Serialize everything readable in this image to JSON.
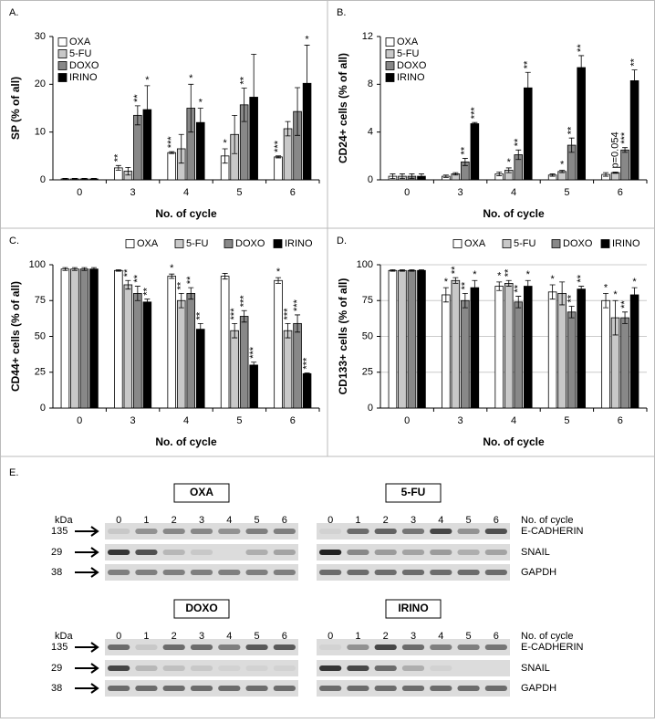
{
  "chart_data": [
    {
      "type": "bar",
      "label": "A.",
      "ylabel": "SP (% of all)",
      "xlabel": "No. of cycle",
      "categories": [
        "0",
        "3",
        "4",
        "5",
        "6"
      ],
      "ylim": [
        0,
        30
      ],
      "yticks": [
        0,
        10,
        20,
        30
      ],
      "grid": false,
      "legend": "upper left",
      "series": [
        {
          "name": "OXA",
          "color": "#ffffff",
          "values": [
            0.2,
            2.5,
            5.7,
            5,
            4.8
          ],
          "errors": [
            0.1,
            0.5,
            0.2,
            1.5,
            0.2
          ],
          "sig": [
            null,
            "**",
            "***",
            "*",
            "***"
          ]
        },
        {
          "name": "5-FU",
          "color": "#c8c8c8",
          "values": [
            0.2,
            1.8,
            6.5,
            9.5,
            10.7
          ],
          "errors": [
            0.1,
            0.8,
            3,
            4,
            1.5
          ],
          "sig": [
            null,
            null,
            null,
            null,
            null
          ]
        },
        {
          "name": "DOXO",
          "color": "#888888",
          "values": [
            0.2,
            13.5,
            15,
            15.7,
            14.3
          ],
          "errors": [
            0.1,
            2,
            5,
            3.5,
            5
          ],
          "sig": [
            null,
            "**",
            "*",
            "**",
            null
          ]
        },
        {
          "name": "IRINO",
          "color": "#000000",
          "values": [
            0.2,
            14.7,
            12,
            17.3,
            20.2
          ],
          "errors": [
            0.1,
            5,
            3,
            9,
            8
          ],
          "sig": [
            null,
            "*",
            "*",
            null,
            "*"
          ]
        }
      ]
    },
    {
      "type": "bar",
      "label": "B.",
      "ylabel": "CD24+ cells (% of all)",
      "xlabel": "No. of cycle",
      "categories": [
        "0",
        "3",
        "4",
        "5",
        "6"
      ],
      "ylim": [
        0,
        12
      ],
      "yticks": [
        0,
        4,
        8,
        12
      ],
      "grid": false,
      "legend": "upper left",
      "series": [
        {
          "name": "OXA",
          "color": "#ffffff",
          "values": [
            0.3,
            0.3,
            0.5,
            0.4,
            0.45
          ],
          "errors": [
            0.2,
            0.1,
            0.15,
            0.1,
            0.15
          ],
          "sig": [
            null,
            null,
            null,
            null,
            null
          ]
        },
        {
          "name": "5-FU",
          "color": "#c8c8c8",
          "values": [
            0.3,
            0.5,
            0.8,
            0.7,
            0.6
          ],
          "errors": [
            0.2,
            0.1,
            0.2,
            0.1,
            0.05
          ],
          "sig": [
            null,
            null,
            "*",
            "*",
            "p=0.054"
          ]
        },
        {
          "name": "DOXO",
          "color": "#888888",
          "values": [
            0.3,
            1.5,
            2.1,
            2.9,
            2.5
          ],
          "errors": [
            0.2,
            0.3,
            0.4,
            0.6,
            0.2
          ],
          "sig": [
            null,
            "**",
            "**",
            "**",
            "***"
          ]
        },
        {
          "name": "IRINO",
          "color": "#000000",
          "values": [
            0.3,
            4.7,
            7.7,
            9.4,
            8.3
          ],
          "errors": [
            0.2,
            0.1,
            1.3,
            1,
            0.9
          ],
          "sig": [
            null,
            "***",
            "**",
            "**",
            "**"
          ]
        }
      ]
    },
    {
      "type": "bar",
      "label": "C.",
      "ylabel": "CD44+ cells (% of all)",
      "xlabel": "No. of cycle",
      "categories": [
        "0",
        "3",
        "4",
        "5",
        "6"
      ],
      "ylim": [
        0,
        100
      ],
      "yticks": [
        0,
        25,
        50,
        75,
        100
      ],
      "grid": false,
      "legend": "top",
      "series": [
        {
          "name": "OXA",
          "color": "#ffffff",
          "values": [
            97,
            96,
            92,
            92,
            89
          ],
          "errors": [
            1,
            0.5,
            1.5,
            2,
            2
          ],
          "sig": [
            null,
            null,
            "*",
            null,
            "*"
          ]
        },
        {
          "name": "5-FU",
          "color": "#c8c8c8",
          "values": [
            97,
            86,
            75,
            54,
            54
          ],
          "errors": [
            1,
            3,
            5,
            5,
            5
          ],
          "sig": [
            null,
            "**",
            "**",
            "***",
            "***"
          ]
        },
        {
          "name": "DOXO",
          "color": "#888888",
          "values": [
            97,
            80,
            80,
            64,
            59
          ],
          "errors": [
            1,
            5,
            4,
            4,
            6
          ],
          "sig": [
            null,
            "**",
            "**",
            "***",
            "***"
          ]
        },
        {
          "name": "IRINO",
          "color": "#000000",
          "values": [
            97,
            74,
            55,
            30,
            24
          ],
          "errors": [
            1,
            2,
            4,
            2,
            0.5
          ],
          "sig": [
            null,
            "**",
            "**",
            "***",
            "***"
          ]
        }
      ]
    },
    {
      "type": "bar",
      "label": "D.",
      "ylabel": "CD133+ cells (% of all)",
      "xlabel": "No. of cycle",
      "categories": [
        "0",
        "3",
        "4",
        "5",
        "6"
      ],
      "ylim": [
        0,
        100
      ],
      "yticks": [
        0,
        25,
        50,
        75,
        100
      ],
      "grid": true,
      "legend": "top",
      "series": [
        {
          "name": "OXA",
          "color": "#ffffff",
          "values": [
            96,
            79,
            85,
            81,
            75
          ],
          "errors": [
            0.5,
            5,
            3,
            5,
            5
          ],
          "sig": [
            null,
            "*",
            "*",
            "*",
            "*"
          ]
        },
        {
          "name": "5-FU",
          "color": "#c8c8c8",
          "values": [
            96,
            89,
            87,
            80,
            63
          ],
          "errors": [
            0.5,
            2,
            2,
            8,
            12
          ],
          "sig": [
            null,
            "**",
            "**",
            null,
            "*"
          ]
        },
        {
          "name": "DOXO",
          "color": "#888888",
          "values": [
            96,
            75,
            74,
            67,
            63
          ],
          "errors": [
            0.5,
            5,
            4,
            4,
            4
          ],
          "sig": [
            null,
            "**",
            "**",
            "**",
            "**"
          ]
        },
        {
          "name": "IRINO",
          "color": "#000000",
          "values": [
            96,
            84,
            85,
            83,
            79
          ],
          "errors": [
            0.5,
            5,
            4,
            2,
            5
          ],
          "sig": [
            null,
            "*",
            "*",
            "**",
            "*"
          ]
        }
      ]
    }
  ],
  "blot": {
    "label": "E.",
    "kda": "kDa",
    "cycle_label": "No. of cycle",
    "treatments": [
      "OXA",
      "5-FU",
      "DOXO",
      "IRINO"
    ],
    "lanes": [
      "0",
      "1",
      "2",
      "3",
      "4",
      "5",
      "6"
    ],
    "sizes": [
      "135",
      "29",
      "38"
    ],
    "proteins": [
      "E-CADHERIN",
      "SNAIL",
      "GAPDH"
    ]
  }
}
